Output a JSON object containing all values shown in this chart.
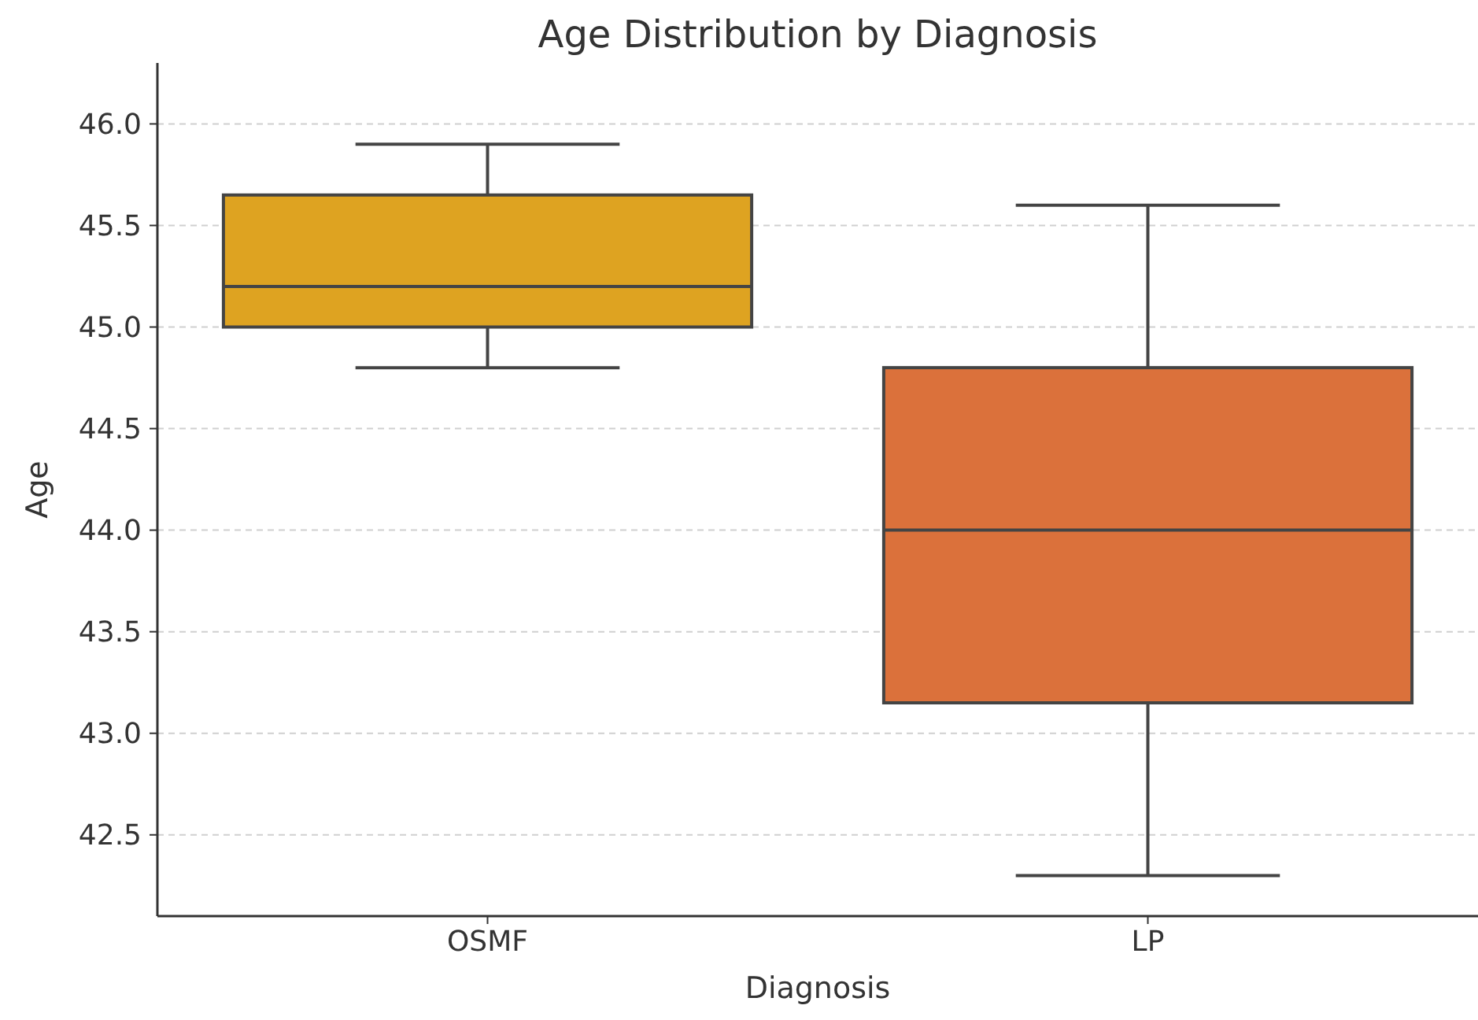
{
  "chart_data": {
    "type": "box",
    "title": "Age Distribution by Diagnosis",
    "xlabel": "Diagnosis",
    "ylabel": "Age",
    "categories": [
      "OSMF",
      "LP"
    ],
    "colors": [
      "#dea321",
      "#db713b"
    ],
    "boxes": [
      {
        "low": 44.8,
        "q1": 45.0,
        "median": 45.2,
        "q3": 45.65,
        "high": 45.9
      },
      {
        "low": 42.3,
        "q1": 43.15,
        "median": 44.0,
        "q3": 44.8,
        "high": 45.6
      }
    ],
    "ylim": [
      42.1,
      46.3
    ],
    "yticks": [
      {
        "value": 42.5,
        "label": "42.5"
      },
      {
        "value": 43,
        "label": "43.0"
      },
      {
        "value": 43.5,
        "label": "43.5"
      },
      {
        "value": 44,
        "label": "44.0"
      },
      {
        "value": 44.5,
        "label": "44.5"
      },
      {
        "value": 45,
        "label": "45.0"
      },
      {
        "value": 45.5,
        "label": "45.5"
      },
      {
        "value": 46,
        "label": "46.0"
      }
    ],
    "grid": "y"
  }
}
